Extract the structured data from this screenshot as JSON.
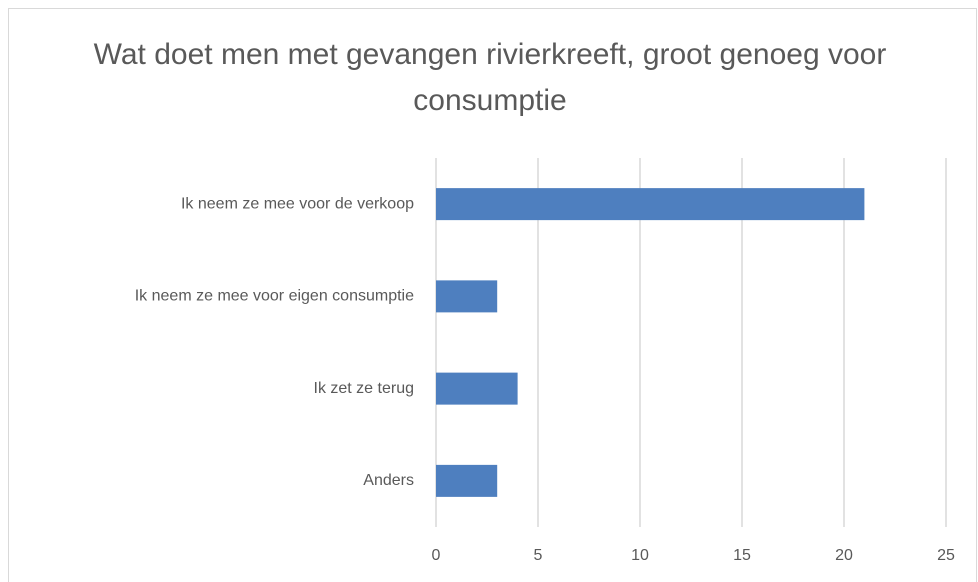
{
  "chart_data": {
    "type": "bar",
    "orientation": "horizontal",
    "title": "Wat doet men met gevangen rivierkreeft, groot genoeg voor consumptie",
    "categories": [
      "Ik neem ze mee voor de verkoop",
      "Ik neem ze mee voor eigen consumptie",
      "Ik zet ze terug",
      "Anders"
    ],
    "values": [
      21,
      3,
      4,
      3
    ],
    "color": "#4e7fbf",
    "xlim": [
      0,
      25
    ],
    "xticks": [
      0,
      5,
      10,
      15,
      20,
      25
    ],
    "grid": true
  }
}
